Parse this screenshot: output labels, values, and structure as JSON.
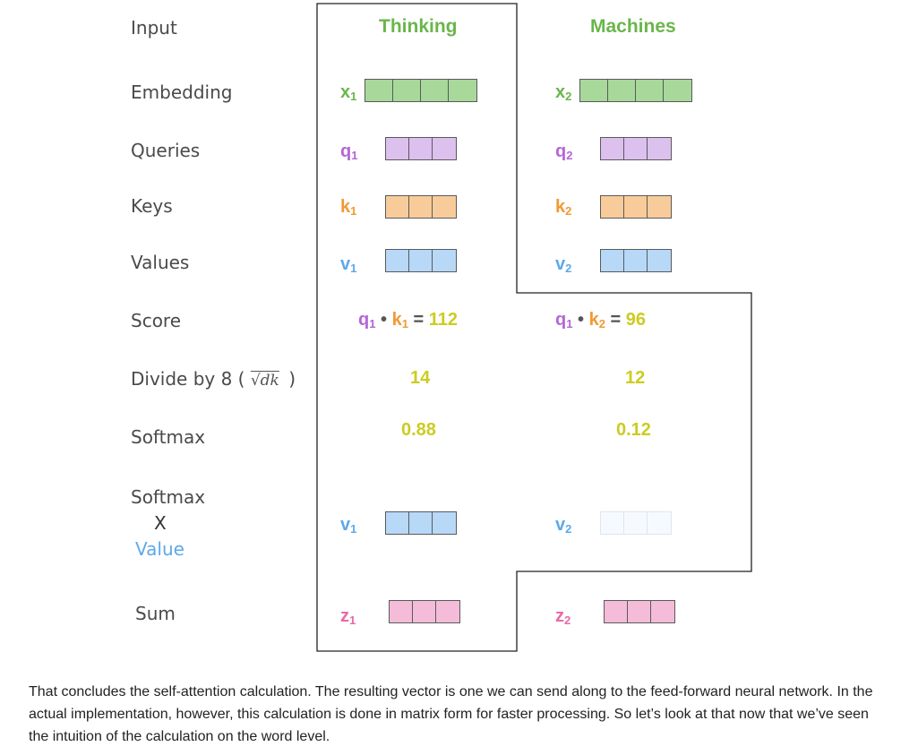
{
  "rows": {
    "input": "Input",
    "embedding": "Embedding",
    "queries": "Queries",
    "keys": "Keys",
    "values": "Values",
    "score": "Score",
    "divide": "Divide by 8 (",
    "divide_formula": "√dk",
    "divide_close": ")",
    "softmax": "Softmax",
    "softmax_value_line1": "Softmax",
    "softmax_value_line2": "X",
    "softmax_value_line3": "Value",
    "sum": "Sum"
  },
  "words": [
    {
      "word": "Thinking",
      "embedding": {
        "name": "x",
        "sub": "1"
      },
      "query": {
        "name": "q",
        "sub": "1"
      },
      "key": {
        "name": "k",
        "sub": "1"
      },
      "value": {
        "name": "v",
        "sub": "1"
      },
      "score": {
        "q": "q",
        "q_sub": "1",
        "dot": "•",
        "k": "k",
        "k_sub": "1",
        "eq": "=",
        "value": "112"
      },
      "divided": "14",
      "softmax": "0.88",
      "weighted": {
        "name": "v",
        "sub": "1",
        "opacity": 1.0
      },
      "sum": {
        "name": "z",
        "sub": "1"
      }
    },
    {
      "word": "Machines",
      "embedding": {
        "name": "x",
        "sub": "2"
      },
      "query": {
        "name": "q",
        "sub": "2"
      },
      "key": {
        "name": "k",
        "sub": "2"
      },
      "value": {
        "name": "v",
        "sub": "2"
      },
      "score": {
        "q": "q",
        "q_sub": "1",
        "dot": "•",
        "k": "k",
        "k_sub": "2",
        "eq": "=",
        "value": "96"
      },
      "divided": "12",
      "softmax": "0.12",
      "weighted": {
        "name": "v",
        "sub": "2",
        "opacity": 0.12
      },
      "sum": {
        "name": "z",
        "sub": "2"
      }
    }
  ],
  "colors": {
    "embedding": "#a8d89a",
    "query": "#dcc0ee",
    "key": "#f8cc9a",
    "value": "#b8d8f8",
    "sum": "#f4bcd8",
    "outline": "#222222"
  },
  "paragraph": "That concludes the self-attention calculation. The resulting vector is one we can send along to the feed-forward neural network. In the actual implementation, however, this calculation is done in matrix form for faster processing. So let’s look at that now that we’ve seen the intuition of the calculation on the word level."
}
